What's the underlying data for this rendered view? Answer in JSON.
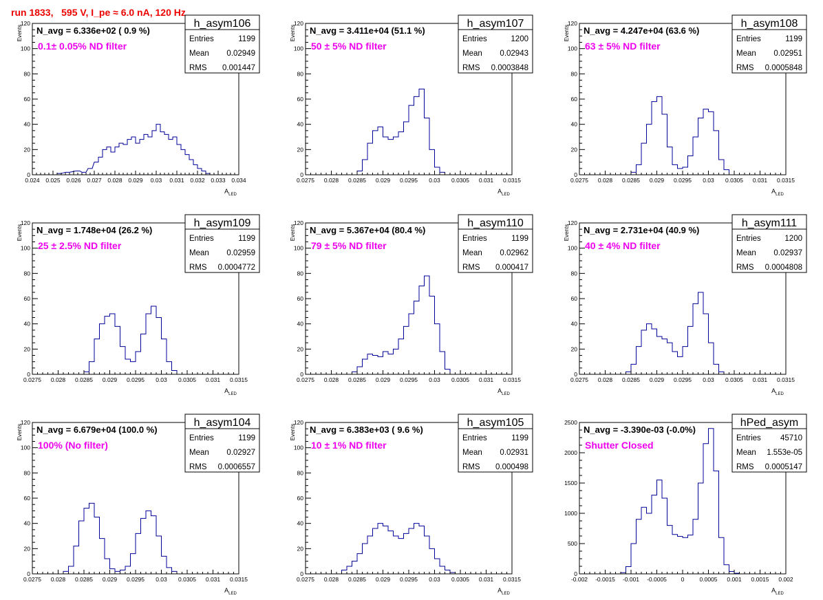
{
  "run_title": "run 1833,   595 V, I_pe ≈ 6.0 nA, 120 Hz",
  "colors": {
    "title": "#ee0000",
    "annotation": "#ee00ee",
    "histogram": "#000099",
    "frame": "#000000",
    "background": "#ffffff"
  },
  "chart_data": [
    {
      "type": "bar",
      "name": "h_asym106",
      "navg": "N_avg = 6.336e+02 ( 0.9 %)",
      "note": "0.1± 0.05% ND filter",
      "stats": {
        "entries_label": "Entries",
        "entries": "1199",
        "mean_label": "Mean",
        "mean": "0.02949",
        "rms_label": "RMS",
        "rms": "0.001447"
      },
      "xlabel": "A",
      "xlabel_sub": "LED",
      "ylabel": "Events",
      "xlim": [
        0.024,
        0.034
      ],
      "ylim": [
        0,
        120
      ],
      "xticks": [
        "0.024",
        "0.025",
        "0.026",
        "0.027",
        "0.028",
        "0.029",
        "0.03",
        "0.031",
        "0.032",
        "0.033",
        "0.034"
      ],
      "yticks": [
        "0",
        "20",
        "40",
        "60",
        "80",
        "100",
        "120"
      ],
      "x": [
        0.0253,
        0.0257,
        0.0262,
        0.0265,
        0.0268,
        0.0271,
        0.0273,
        0.0275,
        0.0277,
        0.0279,
        0.0281,
        0.0283,
        0.0285,
        0.0287,
        0.0289,
        0.0291,
        0.0293,
        0.0295,
        0.0297,
        0.0299,
        0.0301,
        0.0303,
        0.0305,
        0.0307,
        0.0309,
        0.0311,
        0.0313,
        0.0315,
        0.0317,
        0.0319,
        0.0321,
        0.0323,
        0.0325
      ],
      "values": [
        1,
        2,
        3,
        2,
        5,
        10,
        14,
        20,
        22,
        18,
        22,
        25,
        24,
        28,
        30,
        25,
        28,
        32,
        30,
        35,
        40,
        34,
        32,
        28,
        30,
        24,
        20,
        16,
        12,
        8,
        5,
        3,
        1
      ]
    },
    {
      "type": "bar",
      "name": "h_asym107",
      "navg": "N_avg = 3.411e+04 (51.1 %)",
      "note": "50 ± 5% ND filter",
      "stats": {
        "entries_label": "Entries",
        "entries": "1200",
        "mean_label": "Mean",
        "mean": "0.02943",
        "rms_label": "RMS",
        "rms": "0.0003848"
      },
      "xlabel": "A",
      "xlabel_sub": "LED",
      "ylabel": "Events",
      "xlim": [
        0.0275,
        0.0315
      ],
      "ylim": [
        0,
        120
      ],
      "xticks": [
        "0.0275",
        "0.028",
        "0.0285",
        "0.029",
        "0.0295",
        "0.03",
        "0.0305",
        "0.031",
        "0.0315"
      ],
      "yticks": [
        "0",
        "20",
        "40",
        "60",
        "80",
        "100",
        "120"
      ],
      "x": [
        0.02855,
        0.02865,
        0.02875,
        0.02885,
        0.02895,
        0.02905,
        0.02915,
        0.02925,
        0.02935,
        0.02945,
        0.02955,
        0.02965,
        0.02975,
        0.02985,
        0.02995,
        0.03005,
        0.03015
      ],
      "values": [
        3,
        12,
        25,
        35,
        38,
        30,
        28,
        30,
        34,
        42,
        55,
        62,
        68,
        45,
        20,
        6,
        2
      ]
    },
    {
      "type": "bar",
      "name": "h_asym108",
      "navg": "N_avg = 4.247e+04 (63.6 %)",
      "note": "63 ± 5% ND filter",
      "stats": {
        "entries_label": "Entries",
        "entries": "1199",
        "mean_label": "Mean",
        "mean": "0.02951",
        "rms_label": "RMS",
        "rms": "0.0005848"
      },
      "xlabel": "A",
      "xlabel_sub": "LED",
      "ylabel": "Events",
      "xlim": [
        0.0275,
        0.0315
      ],
      "ylim": [
        0,
        120
      ],
      "xticks": [
        "0.0275",
        "0.028",
        "0.0285",
        "0.029",
        "0.0295",
        "0.03",
        "0.0305",
        "0.031",
        "0.0315"
      ],
      "yticks": [
        "0",
        "20",
        "40",
        "60",
        "80",
        "100",
        "120"
      ],
      "x": [
        0.02855,
        0.02865,
        0.02875,
        0.02885,
        0.02895,
        0.02905,
        0.02915,
        0.02925,
        0.02935,
        0.02945,
        0.02955,
        0.02965,
        0.02975,
        0.02985,
        0.02995,
        0.03005,
        0.03015,
        0.03025,
        0.03035
      ],
      "values": [
        2,
        8,
        25,
        40,
        58,
        62,
        48,
        22,
        8,
        5,
        6,
        15,
        30,
        45,
        52,
        50,
        35,
        12,
        4
      ]
    },
    {
      "type": "bar",
      "name": "h_asym109",
      "navg": "N_avg = 1.748e+04 (26.2 %)",
      "note": "25 ± 2.5% ND filter",
      "stats": {
        "entries_label": "Entries",
        "entries": "1199",
        "mean_label": "Mean",
        "mean": "0.02959",
        "rms_label": "RMS",
        "rms": "0.0004772"
      },
      "xlabel": "A",
      "xlabel_sub": "LED",
      "ylabel": "Events",
      "xlim": [
        0.0275,
        0.0315
      ],
      "ylim": [
        0,
        120
      ],
      "xticks": [
        "0.0275",
        "0.028",
        "0.0285",
        "0.029",
        "0.0295",
        "0.03",
        "0.0305",
        "0.031",
        "0.0315"
      ],
      "yticks": [
        "0",
        "20",
        "40",
        "60",
        "80",
        "100",
        "120"
      ],
      "x": [
        0.02855,
        0.02865,
        0.02875,
        0.02885,
        0.02895,
        0.02905,
        0.02915,
        0.02925,
        0.02935,
        0.02945,
        0.02955,
        0.02965,
        0.02975,
        0.02985,
        0.02995,
        0.03005,
        0.03015,
        0.03025
      ],
      "values": [
        2,
        10,
        28,
        40,
        46,
        48,
        38,
        22,
        12,
        10,
        18,
        32,
        48,
        54,
        45,
        28,
        10,
        3
      ]
    },
    {
      "type": "bar",
      "name": "h_asym110",
      "navg": "N_avg = 5.367e+04 (80.4 %)",
      "note": "79 ± 5% ND filter",
      "stats": {
        "entries_label": "Entries",
        "entries": "1199",
        "mean_label": "Mean",
        "mean": "0.02962",
        "rms_label": "RMS",
        "rms": "0.000417"
      },
      "xlabel": "A",
      "xlabel_sub": "LED",
      "ylabel": "Events",
      "xlim": [
        0.0275,
        0.0315
      ],
      "ylim": [
        0,
        120
      ],
      "xticks": [
        "0.0275",
        "0.028",
        "0.0285",
        "0.029",
        "0.0295",
        "0.03",
        "0.0305",
        "0.031",
        "0.0315"
      ],
      "yticks": [
        "0",
        "20",
        "40",
        "60",
        "80",
        "100",
        "120"
      ],
      "x": [
        0.02845,
        0.02855,
        0.02865,
        0.02875,
        0.02885,
        0.02895,
        0.02905,
        0.02915,
        0.02925,
        0.02935,
        0.02945,
        0.02955,
        0.02965,
        0.02975,
        0.02985,
        0.02995,
        0.03005,
        0.03015,
        0.03025
      ],
      "values": [
        2,
        6,
        12,
        16,
        15,
        14,
        18,
        16,
        20,
        28,
        38,
        48,
        58,
        70,
        78,
        62,
        40,
        18,
        4
      ]
    },
    {
      "type": "bar",
      "name": "h_asym111",
      "navg": "N_avg = 2.731e+04 (40.9 %)",
      "note": "40 ± 4% ND filter",
      "stats": {
        "entries_label": "Entries",
        "entries": "1200",
        "mean_label": "Mean",
        "mean": "0.02937",
        "rms_label": "RMS",
        "rms": "0.0004808"
      },
      "xlabel": "A",
      "xlabel_sub": "LED",
      "ylabel": "Events",
      "xlim": [
        0.0275,
        0.0315
      ],
      "ylim": [
        0,
        120
      ],
      "xticks": [
        "0.0275",
        "0.028",
        "0.0285",
        "0.029",
        "0.0295",
        "0.03",
        "0.0305",
        "0.031",
        "0.0315"
      ],
      "yticks": [
        "0",
        "20",
        "40",
        "60",
        "80",
        "100",
        "120"
      ],
      "x": [
        0.02845,
        0.02855,
        0.02865,
        0.02875,
        0.02885,
        0.02895,
        0.02905,
        0.02915,
        0.02925,
        0.02935,
        0.02945,
        0.02955,
        0.02965,
        0.02975,
        0.02985,
        0.02995,
        0.03005,
        0.03015,
        0.03025
      ],
      "values": [
        2,
        8,
        22,
        35,
        40,
        36,
        30,
        28,
        25,
        18,
        14,
        22,
        38,
        56,
        65,
        48,
        25,
        8,
        2
      ]
    },
    {
      "type": "bar",
      "name": "h_asym104",
      "navg": "N_avg = 6.679e+04 (100.0 %)",
      "note": "100% (No filter)",
      "stats": {
        "entries_label": "Entries",
        "entries": "1199",
        "mean_label": "Mean",
        "mean": "0.02927",
        "rms_label": "RMS",
        "rms": "0.0006557"
      },
      "xlabel": "A",
      "xlabel_sub": "LED",
      "ylabel": "Events",
      "xlim": [
        0.0275,
        0.0315
      ],
      "ylim": [
        0,
        120
      ],
      "xticks": [
        "0.0275",
        "0.028",
        "0.0285",
        "0.029",
        "0.0295",
        "0.03",
        "0.0305",
        "0.031",
        "0.0315"
      ],
      "yticks": [
        "0",
        "20",
        "40",
        "60",
        "80",
        "100",
        "120"
      ],
      "x": [
        0.02815,
        0.02825,
        0.02835,
        0.02845,
        0.02855,
        0.02865,
        0.02875,
        0.02885,
        0.02895,
        0.02905,
        0.02915,
        0.02925,
        0.02935,
        0.02945,
        0.02955,
        0.02965,
        0.02975,
        0.02985,
        0.02995,
        0.03005,
        0.03015,
        0.03025
      ],
      "values": [
        2,
        6,
        22,
        42,
        52,
        56,
        45,
        28,
        12,
        4,
        2,
        3,
        6,
        16,
        32,
        44,
        50,
        46,
        30,
        14,
        5,
        2
      ]
    },
    {
      "type": "bar",
      "name": "h_asym105",
      "navg": "N_avg = 6.383e+03 ( 9.6 %)",
      "note": "10 ± 1% ND filter",
      "stats": {
        "entries_label": "Entries",
        "entries": "1199",
        "mean_label": "Mean",
        "mean": "0.02931",
        "rms_label": "RMS",
        "rms": "0.000498"
      },
      "xlabel": "A",
      "xlabel_sub": "LED",
      "ylabel": "Events",
      "xlim": [
        0.0275,
        0.0315
      ],
      "ylim": [
        0,
        120
      ],
      "xticks": [
        "0.0275",
        "0.028",
        "0.0285",
        "0.029",
        "0.0295",
        "0.03",
        "0.0305",
        "0.031",
        "0.0315"
      ],
      "yticks": [
        "0",
        "20",
        "40",
        "60",
        "80",
        "100",
        "120"
      ],
      "x": [
        0.02825,
        0.02835,
        0.02845,
        0.02855,
        0.02865,
        0.02875,
        0.02885,
        0.02895,
        0.02905,
        0.02915,
        0.02925,
        0.02935,
        0.02945,
        0.02955,
        0.02965,
        0.02975,
        0.02985,
        0.02995,
        0.03005,
        0.03015,
        0.03025,
        0.03035
      ],
      "values": [
        3,
        6,
        10,
        16,
        24,
        30,
        36,
        40,
        38,
        34,
        30,
        28,
        32,
        36,
        40,
        38,
        30,
        20,
        12,
        6,
        3,
        1
      ]
    },
    {
      "type": "bar",
      "name": "hPed_asym",
      "navg": "N_avg = -3.390e-03 (-0.0%)",
      "note": "Shutter Closed",
      "stats": {
        "entries_label": "Entries",
        "entries": "45710",
        "mean_label": "Mean",
        "mean": "1.553e-05",
        "rms_label": "RMS",
        "rms": "0.0005147"
      },
      "xlabel": "A",
      "xlabel_sub": "LED",
      "ylabel": "",
      "xlim": [
        -0.002,
        0.002
      ],
      "ylim": [
        0,
        2500
      ],
      "xticks": [
        "-0.002",
        "-0.0015",
        "-0.001",
        "-0.0005",
        "0",
        "0.0005",
        "0.001",
        "0.0015",
        "0.002"
      ],
      "yticks": [
        "0",
        "500",
        "1000",
        "1500",
        "2000",
        "2500"
      ],
      "x": [
        -0.00115,
        -0.00105,
        -0.00095,
        -0.00085,
        -0.00075,
        -0.00065,
        -0.00055,
        -0.00045,
        -0.00035,
        -0.00025,
        -0.00015,
        -5e-05,
        5e-05,
        0.00015,
        0.00025,
        0.00035,
        0.00045,
        0.00055,
        0.00065,
        0.00075,
        0.00085,
        0.00095,
        0.00105
      ],
      "values": [
        20,
        120,
        500,
        900,
        1100,
        1000,
        1300,
        1550,
        1250,
        800,
        650,
        620,
        600,
        640,
        900,
        1500,
        2150,
        2400,
        1700,
        600,
        150,
        40,
        10
      ]
    }
  ]
}
